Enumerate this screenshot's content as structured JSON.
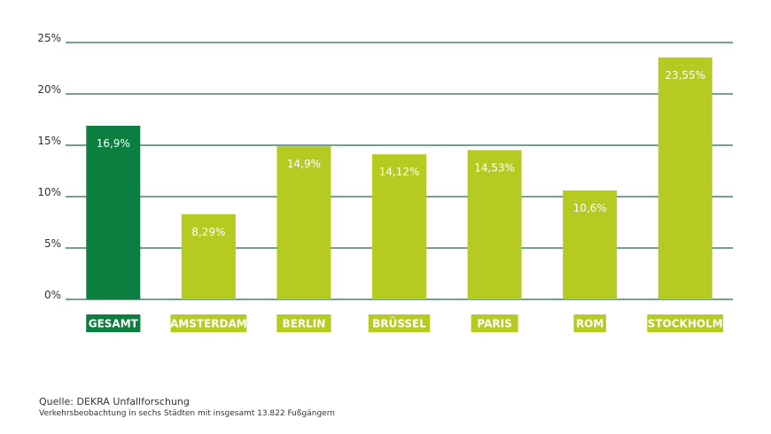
{
  "chart_data": {
    "type": "bar",
    "categories": [
      "GESAMT",
      "AMSTERDAM",
      "BERLIN",
      "BRÜSSEL",
      "PARIS",
      "ROM",
      "STOCKHOLM"
    ],
    "values": [
      16.9,
      8.29,
      14.9,
      14.12,
      14.53,
      10.6,
      23.55
    ],
    "value_labels": [
      "16,9%",
      "8,29%",
      "14,9%",
      "14,12%",
      "14,53%",
      "10,6%",
      "23,55%"
    ],
    "ylim": [
      0,
      25
    ],
    "yticks": [
      0,
      5,
      10,
      15,
      20,
      25
    ],
    "ytick_labels": [
      "0%",
      "5%",
      "10%",
      "15%",
      "20%",
      "25%"
    ],
    "grid": true,
    "highlight_index": 0,
    "colors": {
      "highlight": "#0b7f3f",
      "bar": "#b5cb22",
      "grid": "#1e6b49"
    }
  },
  "footer": {
    "source": "Quelle: DEKRA Unfallforschung",
    "note": "Verkehrsbeobachtung in sechs Städten mit insgesamt 13.822 Fußgängern"
  }
}
